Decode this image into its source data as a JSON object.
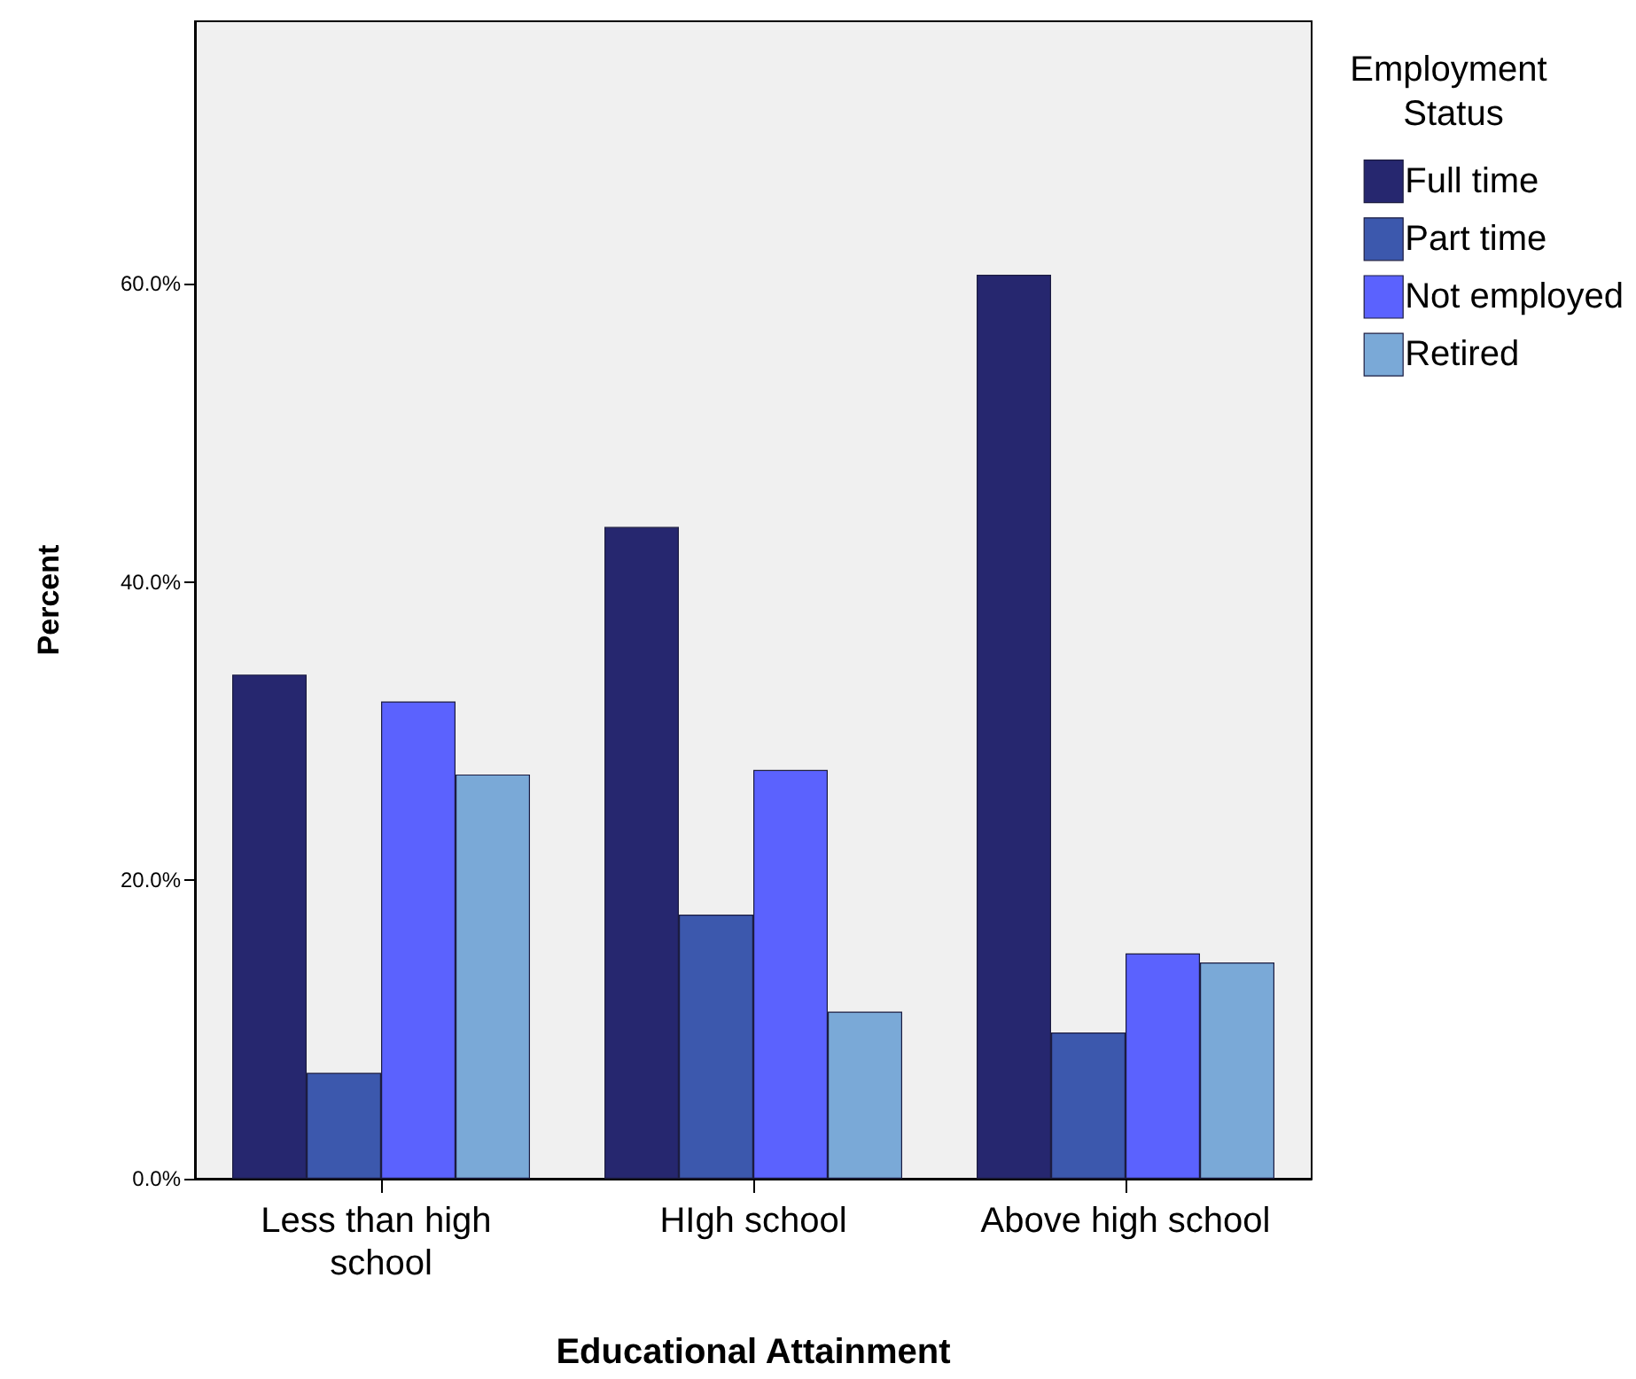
{
  "chart_data": {
    "type": "bar",
    "xlabel": "Educational Attainment",
    "ylabel": "Percent",
    "legend_title": "Employment Status",
    "categories": [
      "Less than high school",
      "HIgh school",
      "Above high school"
    ],
    "series": [
      {
        "name": "Full time",
        "color": "#26276f",
        "values": [
          33.8,
          43.7,
          60.6
        ]
      },
      {
        "name": "Part time",
        "color": "#3c58ad",
        "values": [
          7.1,
          17.7,
          9.8
        ]
      },
      {
        "name": "Not employed",
        "color": "#5b62fe",
        "values": [
          32.0,
          27.4,
          15.1
        ]
      },
      {
        "name": "Retired",
        "color": "#7aa9d7",
        "values": [
          27.1,
          11.2,
          14.5
        ]
      }
    ],
    "ylim": [
      0,
      77.6
    ],
    "yticks": [
      {
        "value": 0,
        "label": "0.0%"
      },
      {
        "value": 20,
        "label": "20.0%"
      },
      {
        "value": 40,
        "label": "40.0%"
      },
      {
        "value": 60,
        "label": "60.0%"
      }
    ],
    "grid": false,
    "legend": "right"
  }
}
